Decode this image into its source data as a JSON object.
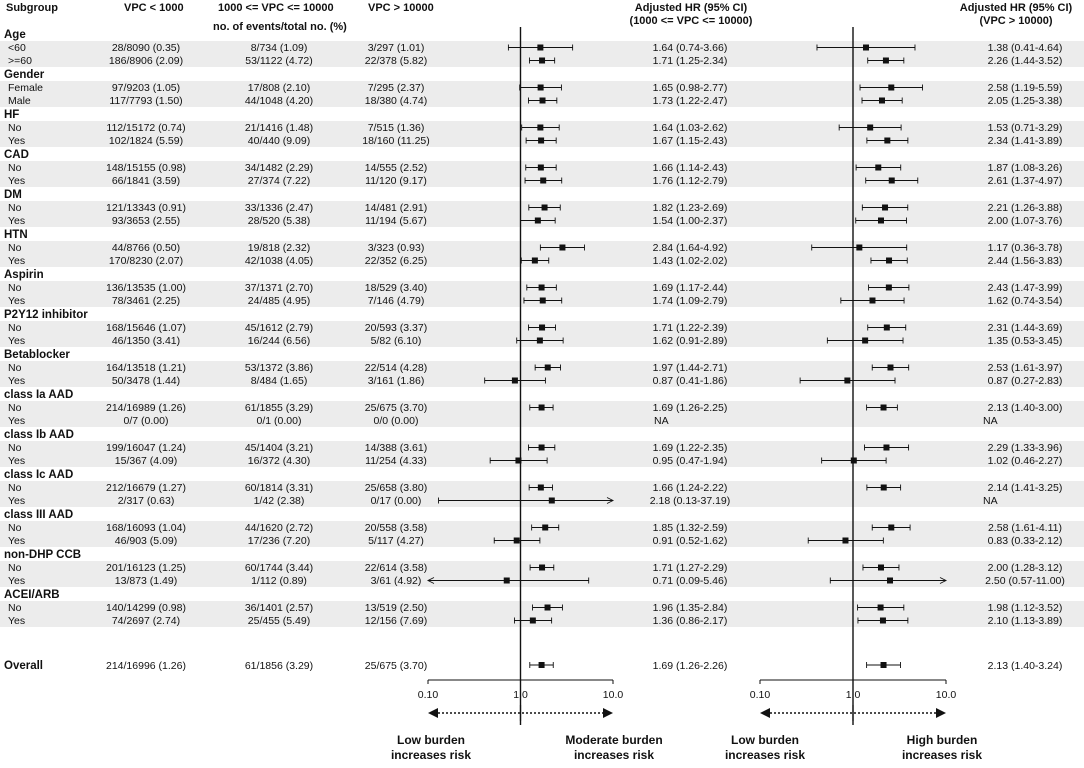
{
  "chart_data": {
    "type": "forest",
    "headers": {
      "subgroup": "Subgroup",
      "col1": "VPC < 1000",
      "col2": "1000 <= VPC <= 10000",
      "col3": "VPC > 10000",
      "subheader": "no. of events/total no. (%)",
      "hr1": "Adjusted HR (95% CI)\n(1000 <= VPC <= 10000)",
      "hr2": "Adjusted HR (95% CI)\n(VPC > 10000)"
    },
    "axis": {
      "scale": "log",
      "range": [
        0.1,
        10
      ],
      "ticks": [
        "0.10",
        "1.0",
        "10.0"
      ],
      "tick_values": [
        0.1,
        1,
        10
      ]
    },
    "bottom_labels": {
      "left1": "Low burden\nincreases risk",
      "right1": "Moderate burden\nincreases risk",
      "left2": "Low burden\nincreases risk",
      "right2": "High burden\nincreases risk"
    },
    "groups": [
      {
        "name": "Age",
        "rows": [
          {
            "label": "<60",
            "c1": "28/8090 (0.35)",
            "c2": "8/734 (1.09)",
            "c3": "3/297 (1.01)",
            "hr1": "1.64 (0.74-3.66)",
            "e1": [
              1.64,
              0.74,
              3.66
            ],
            "hr2": "1.38 (0.41-4.64)",
            "e2": [
              1.38,
              0.41,
              4.64
            ]
          },
          {
            "label": ">=60",
            "c1": "186/8906 (2.09)",
            "c2": "53/1122 (4.72)",
            "c3": "22/378 (5.82)",
            "hr1": "1.71 (1.25-2.34)",
            "e1": [
              1.71,
              1.25,
              2.34
            ],
            "hr2": "2.26 (1.44-3.52)",
            "e2": [
              2.26,
              1.44,
              3.52
            ]
          }
        ]
      },
      {
        "name": "Gender",
        "rows": [
          {
            "label": "Female",
            "c1": "97/9203 (1.05)",
            "c2": "17/808 (2.10)",
            "c3": "7/295 (2.37)",
            "hr1": "1.65 (0.98-2.77)",
            "e1": [
              1.65,
              0.98,
              2.77
            ],
            "hr2": "2.58 (1.19-5.59)",
            "e2": [
              2.58,
              1.19,
              5.59
            ]
          },
          {
            "label": "Male",
            "c1": "117/7793 (1.50)",
            "c2": "44/1048 (4.20)",
            "c3": "18/380 (4.74)",
            "hr1": "1.73 (1.22-2.47)",
            "e1": [
              1.73,
              1.22,
              2.47
            ],
            "hr2": "2.05 (1.25-3.38)",
            "e2": [
              2.05,
              1.25,
              3.38
            ]
          }
        ]
      },
      {
        "name": "HF",
        "rows": [
          {
            "label": "No",
            "c1": "112/15172 (0.74)",
            "c2": "21/1416 (1.48)",
            "c3": "7/515 (1.36)",
            "hr1": "1.64 (1.03-2.62)",
            "e1": [
              1.64,
              1.03,
              2.62
            ],
            "hr2": "1.53 (0.71-3.29)",
            "e2": [
              1.53,
              0.71,
              3.29
            ]
          },
          {
            "label": "Yes",
            "c1": "102/1824 (5.59)",
            "c2": "40/440 (9.09)",
            "c3": "18/160 (11.25)",
            "hr1": "1.67 (1.15-2.43)",
            "e1": [
              1.67,
              1.15,
              2.43
            ],
            "hr2": "2.34 (1.41-3.89)",
            "e2": [
              2.34,
              1.41,
              3.89
            ]
          }
        ]
      },
      {
        "name": "CAD",
        "rows": [
          {
            "label": "No",
            "c1": "148/15155 (0.98)",
            "c2": "34/1482 (2.29)",
            "c3": "14/555 (2.52)",
            "hr1": "1.66 (1.14-2.43)",
            "e1": [
              1.66,
              1.14,
              2.43
            ],
            "hr2": "1.87 (1.08-3.26)",
            "e2": [
              1.87,
              1.08,
              3.26
            ]
          },
          {
            "label": "Yes",
            "c1": "66/1841 (3.59)",
            "c2": "27/374 (7.22)",
            "c3": "11/120 (9.17)",
            "hr1": "1.76 (1.12-2.79)",
            "e1": [
              1.76,
              1.12,
              2.79
            ],
            "hr2": "2.61 (1.37-4.97)",
            "e2": [
              2.61,
              1.37,
              4.97
            ]
          }
        ]
      },
      {
        "name": "DM",
        "rows": [
          {
            "label": "No",
            "c1": "121/13343 (0.91)",
            "c2": "33/1336 (2.47)",
            "c3": "14/481 (2.91)",
            "hr1": "1.82 (1.23-2.69)",
            "e1": [
              1.82,
              1.23,
              2.69
            ],
            "hr2": "2.21 (1.26-3.88)",
            "e2": [
              2.21,
              1.26,
              3.88
            ]
          },
          {
            "label": "Yes",
            "c1": "93/3653 (2.55)",
            "c2": "28/520 (5.38)",
            "c3": "11/194 (5.67)",
            "hr1": "1.54 (1.00-2.37)",
            "e1": [
              1.54,
              1.0,
              2.37
            ],
            "hr2": "2.00 (1.07-3.76)",
            "e2": [
              2.0,
              1.07,
              3.76
            ]
          }
        ]
      },
      {
        "name": "HTN",
        "rows": [
          {
            "label": "No",
            "c1": "44/8766 (0.50)",
            "c2": "19/818 (2.32)",
            "c3": "3/323 (0.93)",
            "hr1": "2.84 (1.64-4.92)",
            "e1": [
              2.84,
              1.64,
              4.92
            ],
            "hr2": "1.17 (0.36-3.78)",
            "e2": [
              1.17,
              0.36,
              3.78
            ]
          },
          {
            "label": "Yes",
            "c1": "170/8230 (2.07)",
            "c2": "42/1038 (4.05)",
            "c3": "22/352 (6.25)",
            "hr1": "1.43 (1.02-2.02)",
            "e1": [
              1.43,
              1.02,
              2.02
            ],
            "hr2": "2.44 (1.56-3.83)",
            "e2": [
              2.44,
              1.56,
              3.83
            ]
          }
        ]
      },
      {
        "name": "Aspirin",
        "rows": [
          {
            "label": "No",
            "c1": "136/13535 (1.00)",
            "c2": "37/1371 (2.70)",
            "c3": "18/529 (3.40)",
            "hr1": "1.69 (1.17-2.44)",
            "e1": [
              1.69,
              1.17,
              2.44
            ],
            "hr2": "2.43 (1.47-3.99)",
            "e2": [
              2.43,
              1.47,
              3.99
            ]
          },
          {
            "label": "Yes",
            "c1": "78/3461 (2.25)",
            "c2": "24/485 (4.95)",
            "c3": "7/146 (4.79)",
            "hr1": "1.74 (1.09-2.79)",
            "e1": [
              1.74,
              1.09,
              2.79
            ],
            "hr2": "1.62 (0.74-3.54)",
            "e2": [
              1.62,
              0.74,
              3.54
            ]
          }
        ]
      },
      {
        "name": "P2Y12 inhibitor",
        "rows": [
          {
            "label": "No",
            "c1": "168/15646 (1.07)",
            "c2": "45/1612 (2.79)",
            "c3": "20/593 (3.37)",
            "hr1": "1.71 (1.22-2.39)",
            "e1": [
              1.71,
              1.22,
              2.39
            ],
            "hr2": "2.31 (1.44-3.69)",
            "e2": [
              2.31,
              1.44,
              3.69
            ]
          },
          {
            "label": "Yes",
            "c1": "46/1350 (3.41)",
            "c2": "16/244 (6.56)",
            "c3": "5/82 (6.10)",
            "hr1": "1.62 (0.91-2.89)",
            "e1": [
              1.62,
              0.91,
              2.89
            ],
            "hr2": "1.35 (0.53-3.45)",
            "e2": [
              1.35,
              0.53,
              3.45
            ]
          }
        ]
      },
      {
        "name": "Betablocker",
        "rows": [
          {
            "label": "No",
            "c1": "164/13518 (1.21)",
            "c2": "53/1372 (3.86)",
            "c3": "22/514 (4.28)",
            "hr1": "1.97 (1.44-2.71)",
            "e1": [
              1.97,
              1.44,
              2.71
            ],
            "hr2": "2.53 (1.61-3.97)",
            "e2": [
              2.53,
              1.61,
              3.97
            ]
          },
          {
            "label": "Yes",
            "c1": "50/3478 (1.44)",
            "c2": "8/484 (1.65)",
            "c3": "3/161 (1.86)",
            "hr1": "0.87 (0.41-1.86)",
            "e1": [
              0.87,
              0.41,
              1.86
            ],
            "hr2": "0.87 (0.27-2.83)",
            "e2": [
              0.87,
              0.27,
              2.83
            ]
          }
        ]
      },
      {
        "name": "class Ia AAD",
        "rows": [
          {
            "label": "No",
            "c1": "214/16989 (1.26)",
            "c2": "61/1855 (3.29)",
            "c3": "25/675 (3.70)",
            "hr1": "1.69 (1.26-2.25)",
            "e1": [
              1.69,
              1.26,
              2.25
            ],
            "hr2": "2.13 (1.40-3.00)",
            "e2": [
              2.13,
              1.4,
              3.0
            ]
          },
          {
            "label": "Yes",
            "c1": "0/7 (0.00)",
            "c2": "0/1 (0.00)",
            "c3": "0/0 (0.00)",
            "hr1": "NA",
            "e1": null,
            "hr2": "NA",
            "e2": null
          }
        ]
      },
      {
        "name": "class Ib AAD",
        "rows": [
          {
            "label": "No",
            "c1": "199/16047 (1.24)",
            "c2": "45/1404 (3.21)",
            "c3": "14/388 (3.61)",
            "hr1": "1.69 (1.22-2.35)",
            "e1": [
              1.69,
              1.22,
              2.35
            ],
            "hr2": "2.29 (1.33-3.96)",
            "e2": [
              2.29,
              1.33,
              3.96
            ]
          },
          {
            "label": "Yes",
            "c1": "15/367 (4.09)",
            "c2": "16/372 (4.30)",
            "c3": "11/254 (4.33)",
            "hr1": "0.95 (0.47-1.94)",
            "e1": [
              0.95,
              0.47,
              1.94
            ],
            "hr2": "1.02 (0.46-2.27)",
            "e2": [
              1.02,
              0.46,
              2.27
            ]
          }
        ]
      },
      {
        "name": "class Ic AAD",
        "rows": [
          {
            "label": "No",
            "c1": "212/16679 (1.27)",
            "c2": "60/1814 (3.31)",
            "c3": "25/658 (3.80)",
            "hr1": "1.66 (1.24-2.22)",
            "e1": [
              1.66,
              1.24,
              2.22
            ],
            "hr2": "2.14 (1.41-3.25)",
            "e2": [
              2.14,
              1.41,
              3.25
            ]
          },
          {
            "label": "Yes",
            "c1": "2/317 (0.63)",
            "c2": "1/42 (2.38)",
            "c3": "0/17 (0.00)",
            "hr1": "2.18 (0.13-37.19)",
            "e1": [
              2.18,
              0.13,
              37.19
            ],
            "hr2": "NA",
            "e2": null
          }
        ]
      },
      {
        "name": "class III AAD",
        "rows": [
          {
            "label": "No",
            "c1": "168/16093 (1.04)",
            "c2": "44/1620 (2.72)",
            "c3": "20/558 (3.58)",
            "hr1": "1.85 (1.32-2.59)",
            "e1": [
              1.85,
              1.32,
              2.59
            ],
            "hr2": "2.58 (1.61-4.11)",
            "e2": [
              2.58,
              1.61,
              4.11
            ]
          },
          {
            "label": "Yes",
            "c1": "46/903 (5.09)",
            "c2": "17/236 (7.20)",
            "c3": "5/117 (4.27)",
            "hr1": "0.91 (0.52-1.62)",
            "e1": [
              0.91,
              0.52,
              1.62
            ],
            "hr2": "0.83 (0.33-2.12)",
            "e2": [
              0.83,
              0.33,
              2.12
            ]
          }
        ]
      },
      {
        "name": "non-DHP CCB",
        "rows": [
          {
            "label": "No",
            "c1": "201/16123 (1.25)",
            "c2": "60/1744 (3.44)",
            "c3": "22/614 (3.58)",
            "hr1": "1.71 (1.27-2.29)",
            "e1": [
              1.71,
              1.27,
              2.29
            ],
            "hr2": "2.00 (1.28-3.12)",
            "e2": [
              2.0,
              1.28,
              3.12
            ]
          },
          {
            "label": "Yes",
            "c1": "13/873 (1.49)",
            "c2": "1/112 (0.89)",
            "c3": "3/61 (4.92)",
            "hr1": "0.71 (0.09-5.46)",
            "e1": [
              0.71,
              0.09,
              5.46
            ],
            "hr2": "2.50 (0.57-11.00)",
            "e2": [
              2.5,
              0.57,
              11.0
            ]
          }
        ]
      },
      {
        "name": "ACEI/ARB",
        "rows": [
          {
            "label": "No",
            "c1": "140/14299 (0.98)",
            "c2": "36/1401 (2.57)",
            "c3": "13/519 (2.50)",
            "hr1": "1.96 (1.35-2.84)",
            "e1": [
              1.96,
              1.35,
              2.84
            ],
            "hr2": "1.98 (1.12-3.52)",
            "e2": [
              1.98,
              1.12,
              3.52
            ]
          },
          {
            "label": "Yes",
            "c1": "74/2697 (2.74)",
            "c2": "25/455 (5.49)",
            "c3": "12/156 (7.69)",
            "hr1": "1.36 (0.86-2.17)",
            "e1": [
              1.36,
              0.86,
              2.17
            ],
            "hr2": "2.10 (1.13-3.89)",
            "e2": [
              2.1,
              1.13,
              3.89
            ]
          }
        ]
      }
    ],
    "overall": {
      "label": "Overall",
      "c1": "214/16996 (1.26)",
      "c2": "61/1856 (3.29)",
      "c3": "25/675 (3.70)",
      "hr1": "1.69 (1.26-2.26)",
      "e1": [
        1.69,
        1.26,
        2.26
      ],
      "hr2": "2.13 (1.40-3.24)",
      "e2": [
        2.13,
        1.4,
        3.24
      ]
    },
    "colors": {
      "band": "#ececec",
      "line": "#111111",
      "text": "#111111"
    }
  }
}
